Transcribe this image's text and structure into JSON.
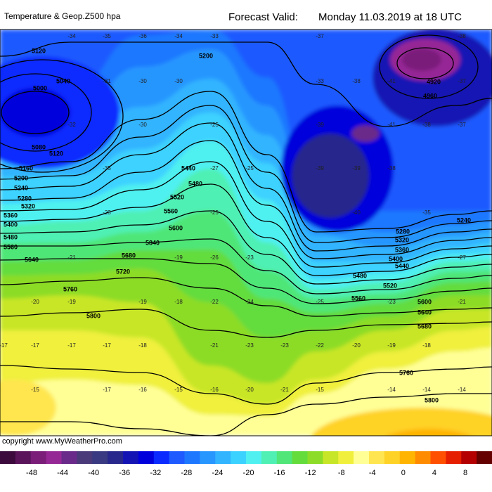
{
  "header": {
    "title": "Temperature & Geop.Z500 hpa",
    "forecast_label": "Forecast Valid:",
    "forecast_time": "Monday 11.03.2019 at 18 UTC"
  },
  "footer": {
    "copyright": "copyright www.MyWeatherPro.com"
  },
  "colorbar": {
    "ticks": [
      -48,
      -44,
      -40,
      -36,
      -32,
      -28,
      -24,
      -20,
      -16,
      -12,
      -8,
      -4,
      0,
      4,
      8
    ],
    "colors": [
      "#3c0a3c",
      "#5a145a",
      "#7a1e7a",
      "#962896",
      "#6a2a8a",
      "#4a3a7a",
      "#3a3a82",
      "#28288c",
      "#1414b4",
      "#0000dc",
      "#0a2aff",
      "#1e5aff",
      "#1e78ff",
      "#2896ff",
      "#32b4ff",
      "#3cd2ff",
      "#50f0f0",
      "#50f0b4",
      "#50e678",
      "#64dc3c",
      "#8cdc28",
      "#c8e628",
      "#f0f03c",
      "#ffff96",
      "#ffe650",
      "#ffd228",
      "#ffb400",
      "#ff8c00",
      "#ff5000",
      "#e61e00",
      "#b40000",
      "#640000"
    ]
  },
  "contour_labels": [
    "5120",
    "5200",
    "5040",
    "5000",
    "5080",
    "5120",
    "5160",
    "5440",
    "5200",
    "5480",
    "5240",
    "5520",
    "5280",
    "5320",
    "5560",
    "5360",
    "5400",
    "5600",
    "5480",
    "5840",
    "5560",
    "5640",
    "5680",
    "5720",
    "5760",
    "5800",
    "4920",
    "4960",
    "5240",
    "5280",
    "5320",
    "5360",
    "5400",
    "5440",
    "5480",
    "5520",
    "5560",
    "5600",
    "5640",
    "5680",
    "5760",
    "5800"
  ],
  "temperature_labels": [
    "-34",
    "-35",
    "-36",
    "-34",
    "-33",
    "-37",
    "-38",
    "-31",
    "-30",
    "-30",
    "-33",
    "-38",
    "-41",
    "-37",
    "-32",
    "-30",
    "-25",
    "-39",
    "-41",
    "-38",
    "-37",
    "-35",
    "-27",
    "-25",
    "-39",
    "-39",
    "-38",
    "-23",
    "-25",
    "-40",
    "-35",
    "-21",
    "-19",
    "-26",
    "-23",
    "-27",
    "-20",
    "-19",
    "-19",
    "-18",
    "-22",
    "-24",
    "-25",
    "-23",
    "-21",
    "-17",
    "-17",
    "-17",
    "-17",
    "-18",
    "-21",
    "-23",
    "-23",
    "-22",
    "-20",
    "-19",
    "-18",
    "-15",
    "-17",
    "-16",
    "-15",
    "-16",
    "-20",
    "-21",
    "-15",
    "-14",
    "-14",
    "-14"
  ]
}
